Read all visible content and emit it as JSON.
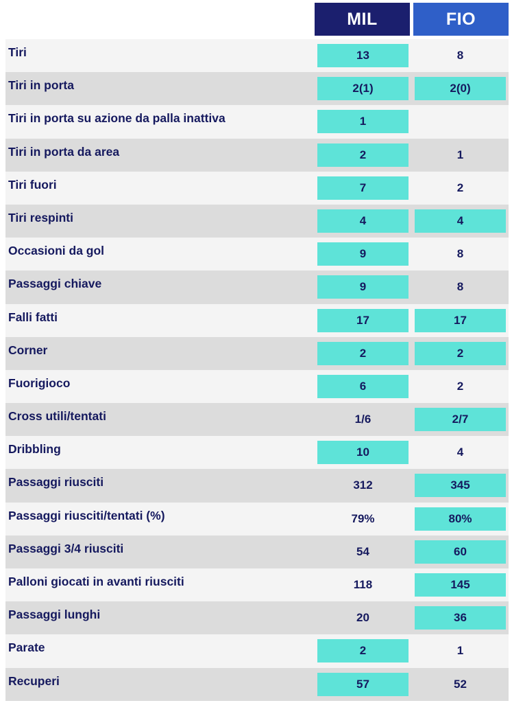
{
  "teams": {
    "home": "MIL",
    "away": "FIO"
  },
  "colors": {
    "home_header": "#1b1f6e",
    "away_header": "#2f5fc8",
    "highlight": "#5ee3d8",
    "text": "#15195e"
  },
  "stats": [
    {
      "label": "Tiri",
      "home": "13",
      "away": "8",
      "home_hl": true,
      "away_hl": false
    },
    {
      "label": "Tiri in porta",
      "home": "2(1)",
      "away": "2(0)",
      "home_hl": true,
      "away_hl": true
    },
    {
      "label": "Tiri in porta su azione da palla inattiva",
      "home": "1",
      "away": "",
      "home_hl": true,
      "away_hl": false
    },
    {
      "label": "Tiri in porta da area",
      "home": "2",
      "away": "1",
      "home_hl": true,
      "away_hl": false
    },
    {
      "label": "Tiri fuori",
      "home": "7",
      "away": "2",
      "home_hl": true,
      "away_hl": false
    },
    {
      "label": "Tiri respinti",
      "home": "4",
      "away": "4",
      "home_hl": true,
      "away_hl": true
    },
    {
      "label": "Occasioni da gol",
      "home": "9",
      "away": "8",
      "home_hl": true,
      "away_hl": false
    },
    {
      "label": "Passaggi chiave",
      "home": "9",
      "away": "8",
      "home_hl": true,
      "away_hl": false
    },
    {
      "label": "Falli fatti",
      "home": "17",
      "away": "17",
      "home_hl": true,
      "away_hl": true
    },
    {
      "label": "Corner",
      "home": "2",
      "away": "2",
      "home_hl": true,
      "away_hl": true
    },
    {
      "label": "Fuorigioco",
      "home": "6",
      "away": "2",
      "home_hl": true,
      "away_hl": false
    },
    {
      "label": "Cross utili/tentati",
      "home": "1/6",
      "away": "2/7",
      "home_hl": false,
      "away_hl": true
    },
    {
      "label": "Dribbling",
      "home": "10",
      "away": "4",
      "home_hl": true,
      "away_hl": false
    },
    {
      "label": "Passaggi riusciti",
      "home": "312",
      "away": "345",
      "home_hl": false,
      "away_hl": true
    },
    {
      "label": "Passaggi riusciti/tentati (%)",
      "home": "79%",
      "away": "80%",
      "home_hl": false,
      "away_hl": true
    },
    {
      "label": "Passaggi 3/4 riusciti",
      "home": "54",
      "away": "60",
      "home_hl": false,
      "away_hl": true
    },
    {
      "label": "Palloni giocati in avanti riusciti",
      "home": "118",
      "away": "145",
      "home_hl": false,
      "away_hl": true
    },
    {
      "label": "Passaggi lunghi",
      "home": "20",
      "away": "36",
      "home_hl": false,
      "away_hl": true
    },
    {
      "label": "Parate",
      "home": "2",
      "away": "1",
      "home_hl": true,
      "away_hl": false
    },
    {
      "label": "Recuperi",
      "home": "57",
      "away": "52",
      "home_hl": true,
      "away_hl": false
    }
  ]
}
